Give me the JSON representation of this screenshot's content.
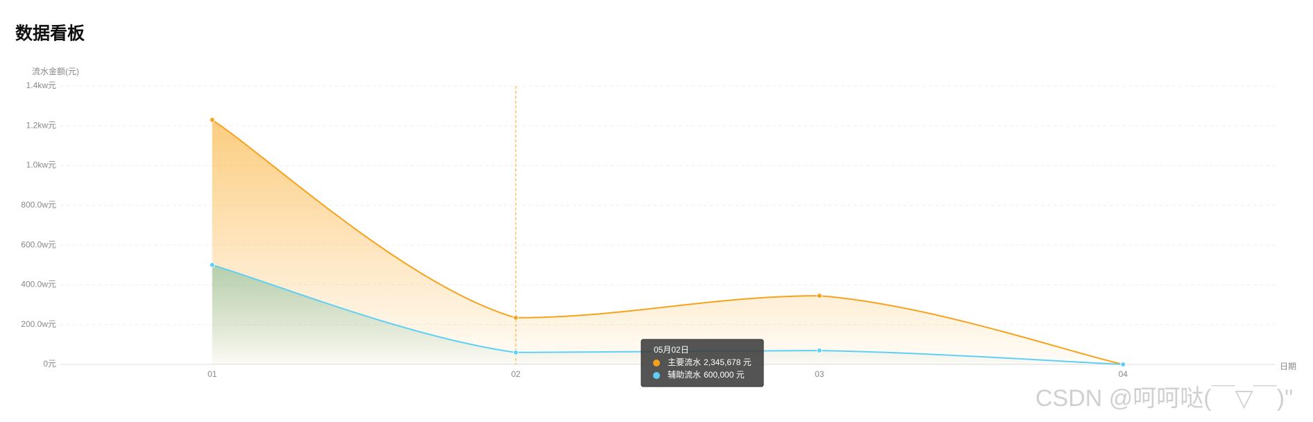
{
  "header": {
    "title": "数据看板"
  },
  "chart_data": {
    "type": "line",
    "smooth": true,
    "area": true,
    "y_axis_label": "流水金额(元)",
    "x_axis_label": "日期",
    "categories": [
      "01",
      "02",
      "03",
      "04"
    ],
    "series": [
      {
        "name": "主要流水",
        "color": "#f7a21b",
        "values": [
          12300000,
          2345678,
          3450000,
          0
        ]
      },
      {
        "name": "辅助流水",
        "color": "#5fd0f5",
        "values": [
          5000000,
          600000,
          700000,
          0
        ]
      }
    ],
    "ylim": [
      0,
      14000000
    ],
    "yticks": [
      {
        "value": 0,
        "label": "0元"
      },
      {
        "value": 2000000,
        "label": "200.0w元"
      },
      {
        "value": 4000000,
        "label": "400.0w元"
      },
      {
        "value": 6000000,
        "label": "600.0w元"
      },
      {
        "value": 8000000,
        "label": "800.0w元"
      },
      {
        "value": 10000000,
        "label": "1.0kw元"
      },
      {
        "value": 12000000,
        "label": "1.2kw元"
      },
      {
        "value": 14000000,
        "label": "1.4kw元"
      }
    ],
    "grid": true,
    "tooltip": {
      "title": "05月02日",
      "value_labels": [
        "2,345,678 元",
        "600,000 元"
      ]
    }
  },
  "watermark": "CSDN @呵呵哒(￣▽￣)\""
}
